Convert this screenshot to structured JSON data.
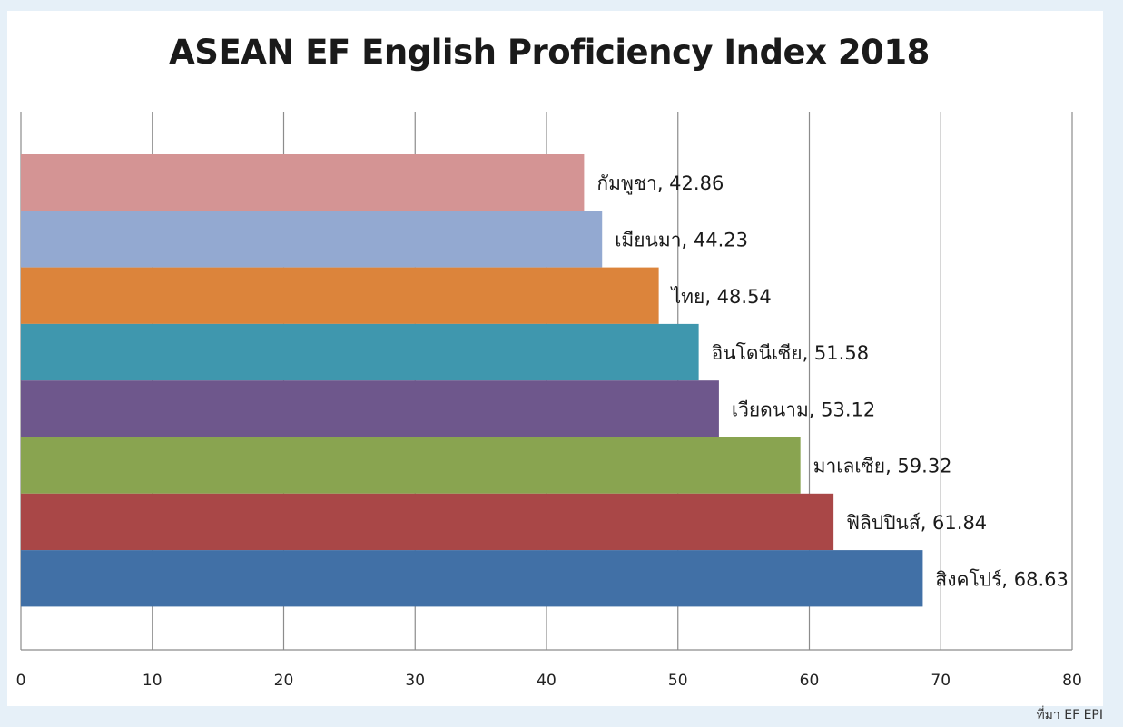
{
  "chart_data": {
    "type": "bar",
    "orientation": "horizontal",
    "title": "ASEAN EF English Proficiency Index 2018",
    "xlim": [
      0,
      80
    ],
    "x_ticks": [
      0,
      10,
      20,
      30,
      40,
      50,
      60,
      70,
      80
    ],
    "grid": true,
    "categories": [
      "กัมพูชา",
      "เมียนมา",
      "ไทย",
      "อินโดนีเซีย",
      "เวียดนาม",
      "มาเลเซีย",
      "ฟิลิปปินส์",
      "สิงคโปร์"
    ],
    "values": [
      42.86,
      44.23,
      48.54,
      51.58,
      53.12,
      59.32,
      61.84,
      68.63
    ],
    "colors": [
      "#d49494",
      "#93a9d1",
      "#dc843b",
      "#3f97ae",
      "#6e578c",
      "#89a450",
      "#a94747",
      "#4170a6"
    ]
  },
  "source_note": "ที่มา EF EPI"
}
